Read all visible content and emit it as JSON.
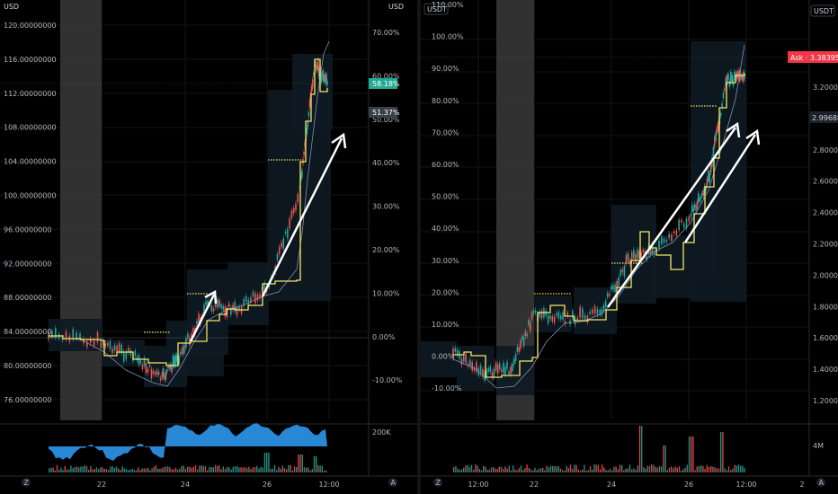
{
  "colors": {
    "background": "#000000",
    "grid": "#131313",
    "price_line": "#f5e663",
    "ma_line": "#7f8fb0",
    "candle_up": "#26a69a",
    "candle_down": "#ef5350",
    "session_shade": "#3a3a3a",
    "box_fill": "#0e1a24",
    "oscillator": "#2b8fe0",
    "arrow": "#ffffff",
    "tag_green": "#22ab94",
    "tag_gray": "#3b3f4a",
    "tag_red": "#f23645",
    "tag_dark": "#1e222d"
  },
  "left_pane": {
    "unit_top_left": "USD",
    "unit_top_right": "USD",
    "price_axis": [
      "120.00000000",
      "116.00000000",
      "112.00000000",
      "108.00000000",
      "104.00000000",
      "100.00000000",
      "96.00000000",
      "92.00000000",
      "88.00000000",
      "84.00000000",
      "80.00000000",
      "76.00000000"
    ],
    "percent_axis": [
      "70.00%",
      "60.00%",
      "50.00%",
      "40.00%",
      "30.00%",
      "20.00%",
      "10.00%",
      "0.00%",
      "-10.00%"
    ],
    "tag_current": "58.18%",
    "tag_secondary": "51.37%",
    "indicator_label": "200K",
    "time_axis": [
      "22",
      "24",
      "26",
      "12:00"
    ],
    "time_axis_icon_left": "Z",
    "time_axis_icon_right": "A"
  },
  "right_pane": {
    "unit_top_left": "USDT",
    "unit_top_right": "USDT",
    "percent_axis": [
      "110.00%",
      "100.00%",
      "90.00%",
      "80.00%",
      "70.00%",
      "60.00%",
      "50.00%",
      "40.00%",
      "30.00%",
      "20.00%",
      "10.00%",
      "0.00%",
      "-10.00%"
    ],
    "price_axis": [
      "3.20000",
      "3.00000",
      "2.80000",
      "2.60000",
      "2.40000",
      "2.20000",
      "2.00000",
      "1.80000",
      "1.60000",
      "1.40000",
      "1.20000"
    ],
    "ask_tag": "Ask · 3.38395",
    "price_tag": "2.99688",
    "indicator_label": "4M",
    "time_axis": [
      "12:00",
      "22",
      "24",
      "26",
      "12:00",
      "2"
    ],
    "time_axis_icon_left": "Z",
    "time_axis_icon_right": "A"
  }
}
